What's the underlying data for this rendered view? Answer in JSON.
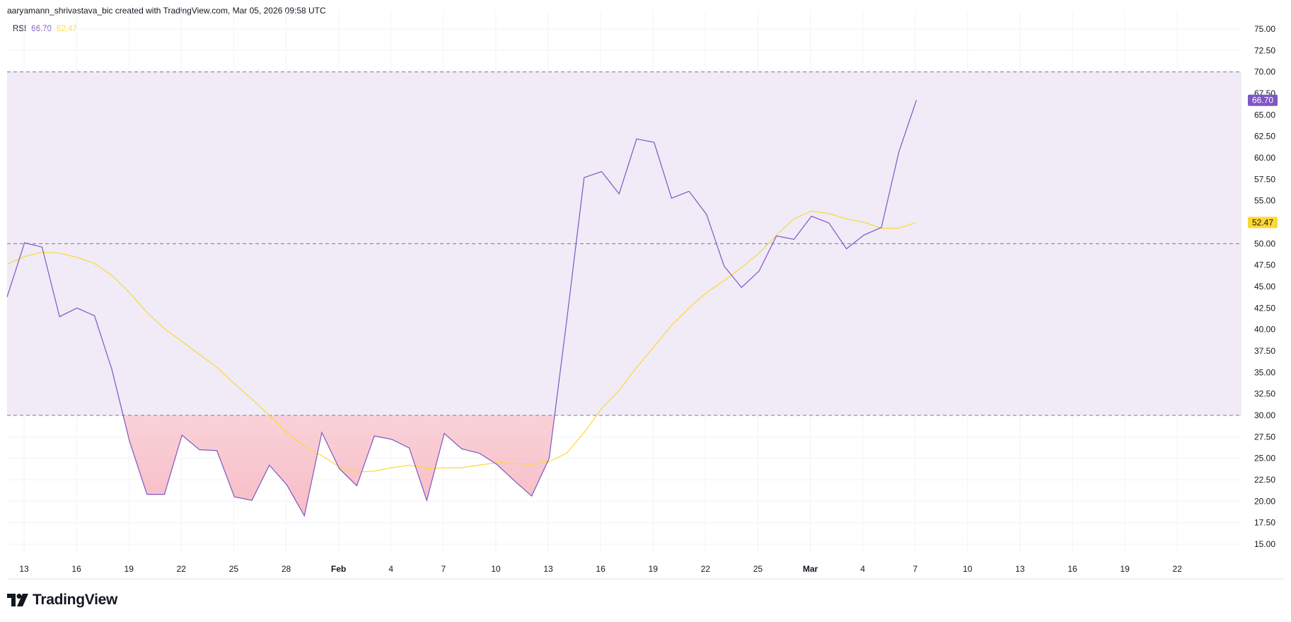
{
  "header": {
    "credit": "aaryamann_shrivastava_bic created with TradingView.com, Mar 05, 2026 09:58 UTC"
  },
  "legend": {
    "name": "RSI",
    "rsi_value": "66.70",
    "ma_value": "52.47"
  },
  "brand": {
    "name": "TradingView",
    "logo_icon": "tradingview-logo-icon"
  },
  "colors": {
    "rsi": "#7e57c2",
    "ma": "#fdd835",
    "band": "#ede7f6",
    "oversold_fill": "#f7bcc6",
    "grid": "#f0f3fa",
    "level_line": "#787b86"
  },
  "chart_data": {
    "type": "line",
    "title": "",
    "ylim": [
      15,
      75
    ],
    "y_ticks": [
      "15.00",
      "17.50",
      "20.00",
      "22.50",
      "25.00",
      "27.50",
      "30.00",
      "32.50",
      "35.00",
      "37.50",
      "40.00",
      "42.50",
      "45.00",
      "47.50",
      "50.00",
      "52.50",
      "55.00",
      "57.50",
      "60.00",
      "62.50",
      "65.00",
      "67.50",
      "70.00",
      "72.50",
      "75.00"
    ],
    "x_tick_labels": [
      {
        "label": "13",
        "bold": false
      },
      {
        "label": "16",
        "bold": false
      },
      {
        "label": "19",
        "bold": false
      },
      {
        "label": "22",
        "bold": false
      },
      {
        "label": "25",
        "bold": false
      },
      {
        "label": "28",
        "bold": false
      },
      {
        "label": "Feb",
        "bold": true
      },
      {
        "label": "4",
        "bold": false
      },
      {
        "label": "7",
        "bold": false
      },
      {
        "label": "10",
        "bold": false
      },
      {
        "label": "13",
        "bold": false
      },
      {
        "label": "16",
        "bold": false
      },
      {
        "label": "19",
        "bold": false
      },
      {
        "label": "22",
        "bold": false
      },
      {
        "label": "25",
        "bold": false
      },
      {
        "label": "Mar",
        "bold": true
      },
      {
        "label": "4",
        "bold": false
      },
      {
        "label": "7",
        "bold": false
      },
      {
        "label": "10",
        "bold": false
      },
      {
        "label": "13",
        "bold": false
      },
      {
        "label": "16",
        "bold": false
      },
      {
        "label": "19",
        "bold": false
      },
      {
        "label": "22",
        "bold": false
      }
    ],
    "levels": {
      "upper": 70,
      "middle": 50,
      "lower": 30
    },
    "grid": true,
    "series": [
      {
        "name": "RSI",
        "values": [
          43.8,
          50.1,
          49.6,
          41.5,
          42.5,
          41.6,
          35.3,
          27.0,
          20.8,
          20.8,
          27.7,
          26.0,
          25.9,
          20.5,
          20.1,
          24.2,
          21.9,
          18.3,
          28.0,
          23.8,
          21.8,
          27.6,
          27.2,
          26.2,
          20.1,
          27.9,
          26.1,
          25.6,
          24.3,
          22.4,
          20.6,
          25.0,
          41.0,
          57.7,
          58.4,
          55.8,
          62.2,
          61.8,
          55.3,
          56.1,
          53.4,
          47.4,
          44.9,
          46.8,
          50.9,
          50.5,
          53.2,
          52.4,
          49.4,
          51.0,
          51.9,
          60.7,
          66.7
        ],
        "last_value": "66.70"
      },
      {
        "name": "RSI-based MA",
        "values": [
          47.6,
          48.5,
          49.0,
          48.9,
          48.4,
          47.7,
          46.3,
          44.3,
          42.0,
          40.1,
          38.6,
          37.1,
          35.6,
          33.7,
          31.9,
          30.0,
          28.0,
          26.4,
          25.3,
          24.0,
          23.4,
          23.5,
          23.9,
          24.2,
          23.8,
          23.9,
          23.9,
          24.2,
          24.5,
          24.4,
          24.3,
          24.6,
          25.6,
          28.0,
          30.8,
          32.9,
          35.6,
          38.0,
          40.5,
          42.5,
          44.3,
          45.7,
          47.2,
          48.9,
          51.0,
          52.9,
          53.8,
          53.5,
          52.9,
          52.5,
          51.8,
          51.8,
          52.47
        ],
        "last_value": "52.47"
      }
    ]
  }
}
